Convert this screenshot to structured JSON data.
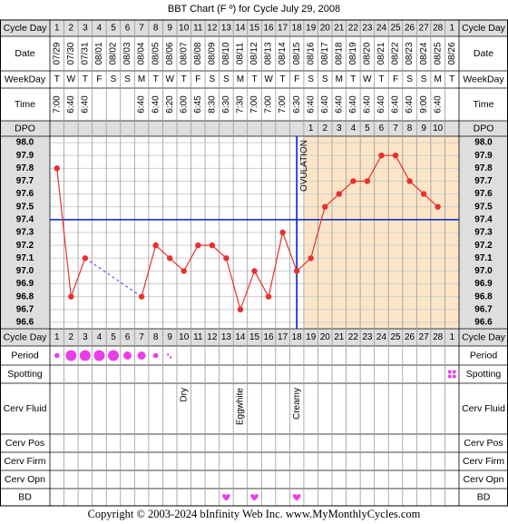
{
  "chart_data": {
    "type": "line",
    "title": "BBT Chart (F º) for Cycle July 29, 2008",
    "row_labels": {
      "cycle_day": "Cycle Day",
      "date": "Date",
      "weekday": "WeekDay",
      "time": "Time",
      "dpo": "DPO",
      "period": "Period",
      "spotting": "Spotting",
      "cerv_fluid": "Cerv Fluid",
      "cerv_pos": "Cerv Pos",
      "cerv_firm": "Cerv Firm",
      "cerv_opn": "Cerv Opn",
      "bd": "BD"
    },
    "categories": [
      1,
      2,
      3,
      4,
      5,
      6,
      7,
      8,
      9,
      10,
      11,
      12,
      13,
      14,
      15,
      16,
      17,
      18,
      19,
      20,
      21,
      22,
      23,
      24,
      25,
      26,
      27,
      28,
      1
    ],
    "dates": [
      "07/29",
      "07/30",
      "07/31",
      "08/01",
      "08/02",
      "08/03",
      "08/04",
      "08/05",
      "08/06",
      "08/07",
      "08/08",
      "08/09",
      "08/10",
      "08/11",
      "08/12",
      "08/13",
      "08/14",
      "08/15",
      "08/16",
      "08/17",
      "08/18",
      "08/19",
      "08/20",
      "08/21",
      "08/22",
      "08/23",
      "08/24",
      "08/25",
      "08/26"
    ],
    "weekdays": [
      "T",
      "W",
      "T",
      "F",
      "S",
      "S",
      "M",
      "T",
      "W",
      "T",
      "F",
      "S",
      "S",
      "M",
      "T",
      "W",
      "T",
      "F",
      "S",
      "S",
      "M",
      "T",
      "W",
      "T",
      "F",
      "S",
      "S",
      "M",
      "T"
    ],
    "times": [
      "7:00",
      "6:40",
      "6:40",
      null,
      null,
      null,
      "6:40",
      "6:40",
      "6:20",
      "6:00",
      "6:45",
      "8:30",
      "6:30",
      "7:30",
      "7:00",
      "7:00",
      "7:00",
      "6:30",
      "6:40",
      "6:40",
      "6:40",
      "6:40",
      "6:40",
      "6:40",
      "6:40",
      "6:40",
      "9:00",
      "6:40",
      null
    ],
    "dpo": [
      null,
      null,
      null,
      null,
      null,
      null,
      null,
      null,
      null,
      null,
      null,
      null,
      null,
      null,
      null,
      null,
      null,
      null,
      1,
      2,
      3,
      4,
      5,
      6,
      7,
      8,
      9,
      10,
      null
    ],
    "values": [
      97.8,
      96.8,
      97.1,
      null,
      null,
      null,
      96.8,
      97.2,
      97.1,
      97.0,
      97.2,
      97.2,
      97.1,
      96.7,
      97.0,
      96.8,
      97.3,
      97.0,
      97.1,
      97.5,
      97.6,
      97.7,
      97.7,
      97.9,
      97.9,
      97.7,
      97.6,
      97.5,
      null
    ],
    "color": "#e8302f",
    "ylim": [
      96.55,
      98.05
    ],
    "yticks": [
      {
        "value": 98,
        "label": "98.0"
      },
      97.9,
      97.8,
      97.7,
      97.6,
      97.5,
      97.4,
      97.3,
      97.2,
      97.1,
      {
        "value": 97,
        "label": "97.0"
      },
      96.9,
      96.8,
      96.7,
      96.6
    ],
    "grid": true,
    "coverline": 97.4,
    "coverline_color": "#0022cc",
    "ovulation": {
      "label": "OVULATION",
      "day": 18
    },
    "luteal_color": "#fbe5c6",
    "period": [
      "light",
      "heavy",
      "heavy",
      "heavy",
      "heavy",
      "medium",
      "medium",
      "light",
      "spotting",
      null,
      null,
      null,
      null,
      null,
      null,
      null,
      null,
      null,
      null,
      null,
      null,
      null,
      null,
      null,
      null,
      null,
      null,
      null,
      null
    ],
    "spotting": [
      false,
      false,
      false,
      false,
      false,
      false,
      false,
      false,
      false,
      false,
      false,
      false,
      false,
      false,
      false,
      false,
      false,
      false,
      false,
      false,
      false,
      false,
      false,
      false,
      false,
      false,
      false,
      false,
      true
    ],
    "cerv_fluid": [
      null,
      null,
      null,
      null,
      null,
      null,
      null,
      null,
      null,
      "Dry",
      null,
      null,
      null,
      "Eggwhite",
      null,
      null,
      null,
      "Creamy",
      null,
      null,
      null,
      null,
      null,
      null,
      null,
      null,
      null,
      null,
      null
    ],
    "bd": [
      false,
      false,
      false,
      false,
      false,
      false,
      false,
      false,
      false,
      false,
      false,
      false,
      true,
      false,
      true,
      false,
      false,
      true,
      false,
      false,
      false,
      false,
      false,
      false,
      false,
      false,
      false,
      false,
      false
    ],
    "pink": "#ea3fe8",
    "footer": "Copyright © 2003-2024 bInfinity Web Inc.     www.MyMonthlyCycles.com"
  }
}
